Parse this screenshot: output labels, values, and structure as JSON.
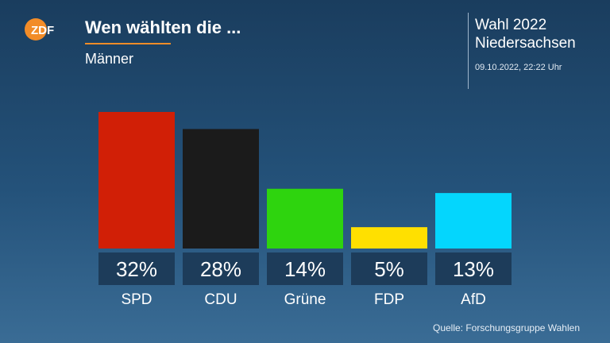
{
  "header": {
    "logo_text": "ZDF",
    "title": "Wen wählten die ...",
    "subtitle": "Männer",
    "election_line1": "Wahl 2022",
    "election_line2": "Niedersachsen",
    "timestamp": "09.10.2022, 22:22 Uhr"
  },
  "footer": {
    "source": "Quelle: Forschungsgruppe Wahlen"
  },
  "colors": {
    "accent": "#f28c28",
    "label_box": "#1d3c5a"
  },
  "chart_data": {
    "type": "bar",
    "categories": [
      "SPD",
      "CDU",
      "Grüne",
      "FDP",
      "AfD"
    ],
    "values": [
      32,
      28,
      14,
      5,
      13
    ],
    "value_labels": [
      "32%",
      "28%",
      "14%",
      "5%",
      "13%"
    ],
    "colors": [
      "#d11f06",
      "#1b1b1b",
      "#2ed40e",
      "#ffe000",
      "#04d6fd"
    ],
    "title": "Wen wählten die ...",
    "subtitle": "Männer",
    "xlabel": "",
    "ylabel": "",
    "ylim": [
      0,
      32
    ],
    "grid": false,
    "legend": "none"
  }
}
